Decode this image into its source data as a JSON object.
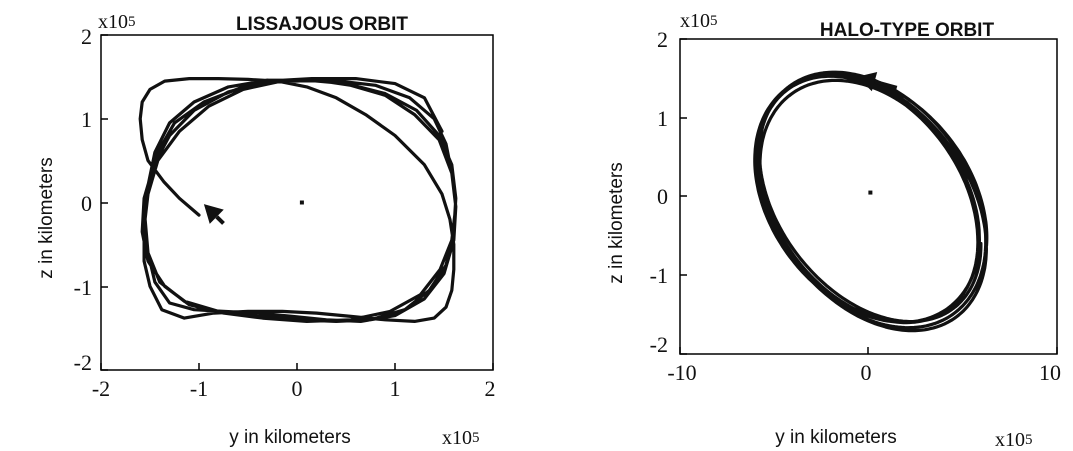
{
  "chart_data": [
    {
      "type": "line",
      "title": "LISSAJOUS ORBIT",
      "xlabel": "y in kilometers",
      "ylabel": "z in kilometers",
      "x_multiplier": {
        "base": "x10",
        "exp": "5"
      },
      "y_multiplier": {
        "base": "x10",
        "exp": "5"
      },
      "xlim": [
        -2,
        2
      ],
      "ylim": [
        -2,
        2
      ],
      "xticks": [
        -2,
        -1,
        0,
        1,
        2
      ],
      "yticks": [
        -2,
        -1,
        0,
        1,
        2
      ],
      "xtick_labels": [
        "-2",
        "-1",
        "0",
        "1",
        "2"
      ],
      "ytick_labels": [
        "-2",
        "-1",
        "0",
        "1",
        "2"
      ],
      "grid": false,
      "center_point": [
        0.05,
        0
      ],
      "arrow": {
        "from": [
          -0.75,
          -0.25
        ],
        "to": [
          -0.95,
          -0.02
        ]
      },
      "series": [
        {
          "x": [
            -1.0,
            -1.2,
            -1.36,
            -1.52,
            -1.58,
            -1.6,
            -1.58,
            -1.5,
            -1.35,
            -1.1,
            -0.8,
            -0.5,
            -0.2,
            0.1,
            0.4,
            0.7,
            1.0,
            1.3,
            1.48,
            1.56,
            1.6,
            1.6,
            1.58,
            1.52,
            1.4,
            1.2,
            0.9,
            0.55,
            0.2,
            -0.15,
            -0.5,
            -0.85,
            -1.15,
            -1.38,
            -1.5,
            -1.56,
            -1.56,
            -1.52,
            -1.42,
            -1.2,
            -0.9,
            -0.55,
            -0.2,
            0.2,
            0.55,
            0.9,
            1.2,
            1.45,
            1.58,
            1.62,
            1.6,
            1.5,
            1.3,
            1.0,
            0.65,
            0.3,
            -0.05,
            -0.4,
            -0.75,
            -1.05,
            -1.3,
            -1.45,
            -1.52,
            -1.55,
            -1.52,
            -1.45,
            -1.3,
            -1.05,
            -0.7,
            -0.3,
            0.1,
            0.5,
            0.9,
            1.22,
            1.45,
            1.58,
            1.62,
            1.6,
            1.52,
            1.35,
            1.1,
            0.75,
            0.4,
            0.0,
            -0.4,
            -0.8,
            -1.15,
            -1.4,
            -1.52,
            -1.56,
            -1.52,
            -1.42,
            -1.25,
            -0.95,
            -0.55,
            -0.1,
            0.35,
            0.8,
            1.15,
            1.4,
            1.52,
            1.58,
            1.62,
            1.58,
            1.46,
            1.26,
            0.95,
            0.55,
            0.1,
            -0.35,
            -0.75,
            -1.1,
            -1.35,
            -1.52,
            -1.58,
            -1.56,
            -1.46,
            -1.3,
            -1.05,
            -0.7,
            -0.3,
            0.15,
            0.6,
            1.0,
            1.3,
            1.48
          ],
          "y": [
            -0.15,
            0.05,
            0.25,
            0.5,
            0.75,
            1.0,
            1.2,
            1.35,
            1.45,
            1.48,
            1.48,
            1.47,
            1.45,
            1.38,
            1.25,
            1.05,
            0.8,
            0.45,
            0.1,
            -0.2,
            -0.5,
            -0.8,
            -1.05,
            -1.25,
            -1.38,
            -1.42,
            -1.4,
            -1.36,
            -1.32,
            -1.3,
            -1.3,
            -1.32,
            -1.38,
            -1.28,
            -1.0,
            -0.7,
            -0.3,
            0.1,
            0.5,
            0.85,
            1.15,
            1.35,
            1.44,
            1.46,
            1.4,
            1.28,
            1.05,
            0.75,
            0.35,
            -0.05,
            -0.45,
            -0.85,
            -1.15,
            -1.35,
            -1.42,
            -1.4,
            -1.36,
            -1.32,
            -1.3,
            -1.28,
            -1.2,
            -0.95,
            -0.6,
            -0.2,
            0.2,
            0.6,
            0.95,
            1.2,
            1.38,
            1.46,
            1.46,
            1.42,
            1.3,
            1.1,
            0.8,
            0.45,
            0.05,
            -0.35,
            -0.75,
            -1.05,
            -1.28,
            -1.4,
            -1.42,
            -1.4,
            -1.36,
            -1.3,
            -1.18,
            -0.95,
            -0.6,
            -0.2,
            0.2,
            0.6,
            0.95,
            1.2,
            1.38,
            1.46,
            1.46,
            1.4,
            1.25,
            1.0,
            0.7,
            0.35,
            -0.05,
            -0.45,
            -0.8,
            -1.1,
            -1.3,
            -1.4,
            -1.42,
            -1.38,
            -1.32,
            -1.22,
            -1.0,
            -0.7,
            -0.35,
            0.05,
            0.45,
            0.8,
            1.1,
            1.32,
            1.45,
            1.48,
            1.48,
            1.42,
            1.25,
            0.85
          ]
        }
      ]
    },
    {
      "type": "line",
      "title": "HALO-TYPE ORBIT",
      "xlabel": "y in kilometers",
      "ylabel": "z in kilometers",
      "x_multiplier": {
        "base": "x10",
        "exp": "5"
      },
      "y_multiplier": {
        "base": "x10",
        "exp": "5"
      },
      "xlim": [
        -10,
        10
      ],
      "ylim": [
        -2,
        2
      ],
      "xticks": [
        -10,
        0,
        10
      ],
      "yticks": [
        -2,
        -1,
        0,
        1,
        2
      ],
      "xtick_labels": [
        "-10",
        "0",
        "10"
      ],
      "ytick_labels": [
        "-2",
        "-1",
        "0",
        "1",
        "2"
      ],
      "grid": false,
      "center_point": [
        0.1,
        0.05
      ],
      "arrow": {
        "from": [
          1.5,
          1.38
        ],
        "to": [
          -0.6,
          1.52
        ]
      },
      "series": [
        {
          "center": [
            0.1,
            -0.05
          ],
          "rx": 6.5,
          "ry": 1.58,
          "tilt_deg": -22,
          "turns": 5
        }
      ]
    }
  ]
}
